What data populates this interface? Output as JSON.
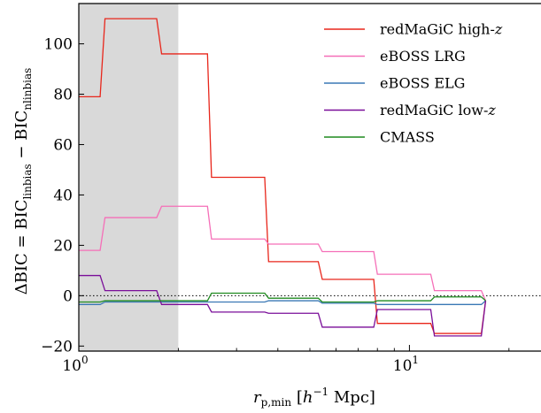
{
  "chart_data": {
    "type": "line",
    "xlabel": "r_p,min [h^-1 Mpc]",
    "ylabel": "ΔBIC = BIC_linbias − BIC_nlinbias",
    "xscale": "log",
    "xlim": [
      1.0,
      25.0
    ],
    "ylim": [
      -22,
      116
    ],
    "yticks": [
      -20,
      0,
      20,
      40,
      60,
      80,
      100
    ],
    "ytick_labels": [
      "−20",
      "0",
      "20",
      "40",
      "60",
      "80",
      "100"
    ],
    "xtick_labels": [
      {
        "value": 1,
        "mantissa": "10",
        "exp": "0"
      },
      {
        "value": 10,
        "mantissa": "10",
        "exp": "1"
      }
    ],
    "shaded_region": {
      "x": [
        1.0,
        2.0
      ],
      "color": "#d9d9d9"
    },
    "reference_line": {
      "y": 0,
      "style": "dotted"
    },
    "legend_position": "top-right",
    "series": [
      {
        "name": "redMaGiC high-z",
        "color": "#e8261b",
        "points": [
          [
            1.0,
            79
          ],
          [
            1.16,
            79
          ],
          [
            1.2,
            110
          ],
          [
            1.72,
            110
          ],
          [
            1.78,
            96
          ],
          [
            2.45,
            96
          ],
          [
            2.52,
            47
          ],
          [
            3.65,
            47
          ],
          [
            3.75,
            13.5
          ],
          [
            5.3,
            13.5
          ],
          [
            5.45,
            6.5
          ],
          [
            7.8,
            6.5
          ],
          [
            8.0,
            -11
          ],
          [
            11.6,
            -11
          ],
          [
            11.9,
            -15
          ],
          [
            16.5,
            -15
          ],
          [
            17.0,
            -2
          ]
        ]
      },
      {
        "name": "eBOSS LRG",
        "color": "#f56fb8",
        "points": [
          [
            1.0,
            18
          ],
          [
            1.16,
            18
          ],
          [
            1.2,
            31
          ],
          [
            1.72,
            31
          ],
          [
            1.78,
            35.5
          ],
          [
            2.45,
            35.5
          ],
          [
            2.52,
            22.5
          ],
          [
            3.65,
            22.5
          ],
          [
            3.75,
            20.5
          ],
          [
            5.3,
            20.5
          ],
          [
            5.45,
            17.5
          ],
          [
            7.8,
            17.5
          ],
          [
            8.0,
            8.5
          ],
          [
            11.6,
            8.5
          ],
          [
            11.9,
            2
          ],
          [
            16.5,
            2
          ],
          [
            17.0,
            -2
          ]
        ]
      },
      {
        "name": "eBOSS ELG",
        "color": "#3a78b5",
        "points": [
          [
            1.0,
            -3.5
          ],
          [
            1.16,
            -3.5
          ],
          [
            1.2,
            -2.5
          ],
          [
            2.45,
            -2.5
          ],
          [
            2.52,
            -2.5
          ],
          [
            3.65,
            -2.5
          ],
          [
            3.75,
            -2
          ],
          [
            5.3,
            -2
          ],
          [
            5.45,
            -3
          ],
          [
            7.8,
            -3
          ],
          [
            8.0,
            -3.5
          ],
          [
            16.5,
            -3.5
          ],
          [
            17.0,
            -2
          ]
        ]
      },
      {
        "name": "redMaGiC low-z",
        "color": "#7a0e99",
        "points": [
          [
            1.0,
            8
          ],
          [
            1.16,
            8
          ],
          [
            1.2,
            2
          ],
          [
            1.72,
            2
          ],
          [
            1.78,
            -3.5
          ],
          [
            2.45,
            -3.5
          ],
          [
            2.52,
            -6.5
          ],
          [
            3.65,
            -6.5
          ],
          [
            3.75,
            -7
          ],
          [
            5.3,
            -7
          ],
          [
            5.45,
            -12.5
          ],
          [
            7.8,
            -12.5
          ],
          [
            8.0,
            -5.5
          ],
          [
            11.6,
            -5.5
          ],
          [
            11.9,
            -16
          ],
          [
            16.5,
            -16
          ],
          [
            17.0,
            -2
          ]
        ]
      },
      {
        "name": "CMASS",
        "color": "#1f8a1f",
        "points": [
          [
            1.0,
            -2.5
          ],
          [
            1.16,
            -2.5
          ],
          [
            1.2,
            -2
          ],
          [
            2.45,
            -2
          ],
          [
            2.52,
            1
          ],
          [
            3.65,
            1
          ],
          [
            3.75,
            -1
          ],
          [
            5.3,
            -1
          ],
          [
            5.45,
            -2.5
          ],
          [
            7.8,
            -2.5
          ],
          [
            8.0,
            -2
          ],
          [
            11.6,
            -2
          ],
          [
            11.9,
            -0.5
          ],
          [
            16.5,
            -0.5
          ],
          [
            17.0,
            -2
          ]
        ]
      }
    ]
  }
}
